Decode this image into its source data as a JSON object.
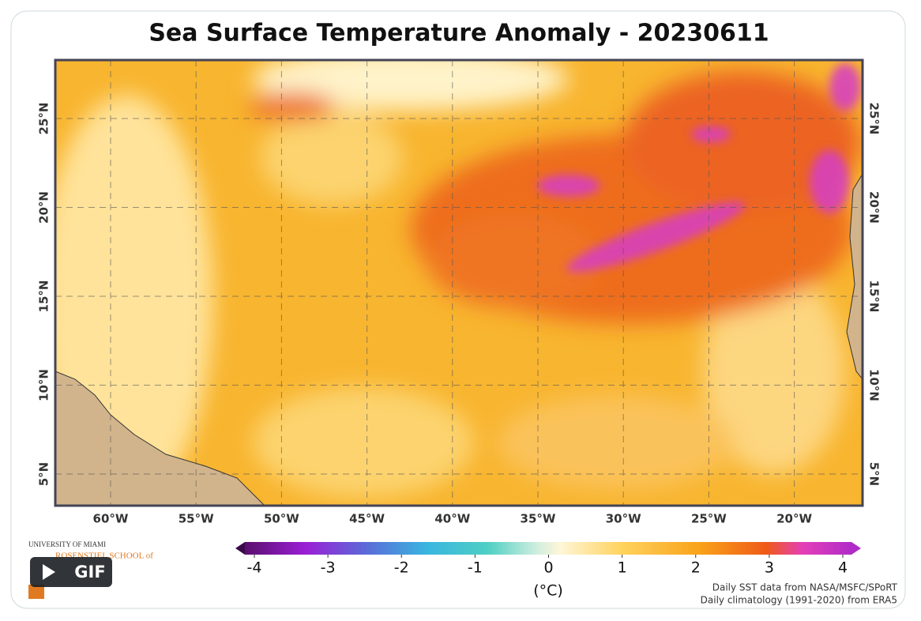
{
  "title": "Sea Surface Temperature Anomaly - 20230611",
  "map": {
    "lon_labels": [
      "60°W",
      "55°W",
      "50°W",
      "45°W",
      "40°W",
      "35°W",
      "30°W",
      "25°W",
      "20°W"
    ],
    "lat_labels": [
      "25°N",
      "20°N",
      "15°N",
      "10°N",
      "5°N"
    ]
  },
  "colorbar": {
    "ticks": [
      -4,
      -3,
      -2,
      -1,
      0,
      1,
      2,
      3,
      4
    ],
    "unit": "(°C)"
  },
  "credits": [
    "Daily SST data from NASA/MSFC/SPoRT",
    "Daily climatology (1991-2020) from ERA5"
  ],
  "logo": [
    "UNIVERSITY OF MIAMI",
    "ROSENSTIEL SCHOOL of"
  ],
  "gif_label": "GIF"
}
